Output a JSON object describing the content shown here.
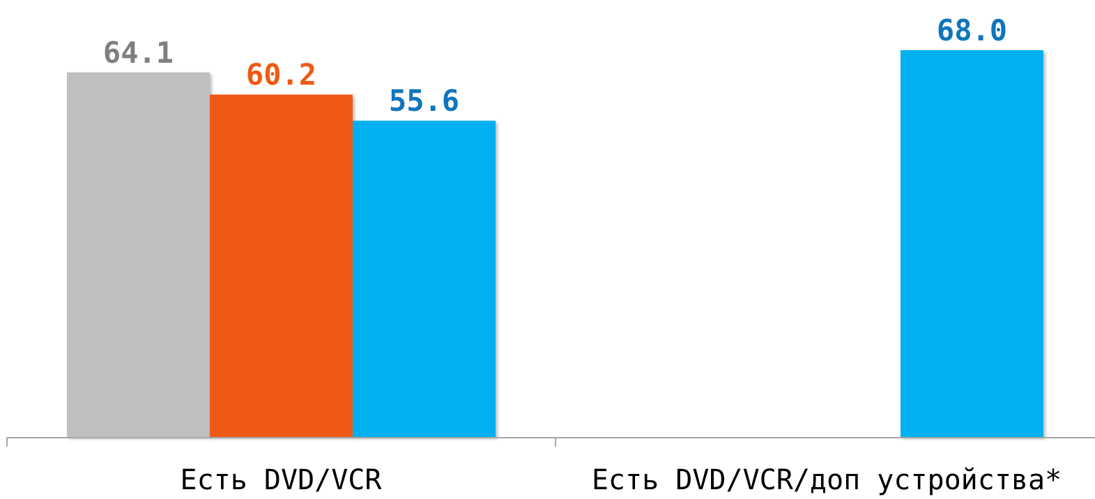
{
  "chart_data": {
    "type": "bar",
    "title": "",
    "xlabel": "",
    "ylabel": "",
    "ylim": [
      0,
      70
    ],
    "grid": false,
    "categories": [
      "Есть DVD/VCR",
      "Есть DVD/VCR/доп устройства*"
    ],
    "series": [
      {
        "color": "#BFBFBF",
        "label_color": "#7F7F7F",
        "values": [
          64.1,
          null
        ],
        "data_labels": [
          "64.1",
          ""
        ]
      },
      {
        "color": "#EE5A14",
        "label_color": "#EE5A14",
        "values": [
          60.2,
          null
        ],
        "data_labels": [
          "60.2",
          ""
        ]
      },
      {
        "color": "#00B0F0",
        "label_color": "#0F75BC",
        "values": [
          55.6,
          68.0
        ],
        "data_labels": [
          "55.6",
          "68.0"
        ]
      }
    ]
  },
  "colors": {
    "axis": "#A6A6A6",
    "category_label": "#000000"
  }
}
